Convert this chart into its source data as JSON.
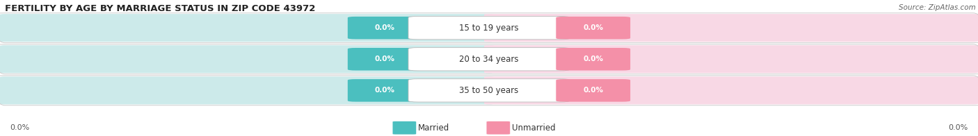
{
  "title": "FERTILITY BY AGE BY MARRIAGE STATUS IN ZIP CODE 43972",
  "source": "Source: ZipAtlas.com",
  "categories": [
    "15 to 19 years",
    "20 to 34 years",
    "35 to 50 years"
  ],
  "married_values": [
    0.0,
    0.0,
    0.0
  ],
  "unmarried_values": [
    0.0,
    0.0,
    0.0
  ],
  "married_color": "#4bbfbf",
  "unmarried_color": "#f490a8",
  "row_bg_left": "#d8f0f0",
  "row_bg_right": "#fad8e8",
  "row_bg_center": "#e8e8e8",
  "label_box_color": "#ffffff",
  "title_fontsize": 9.5,
  "source_fontsize": 7.5,
  "value_label": "0.0%",
  "axis_label_left": "0.0%",
  "axis_label_right": "0.0%",
  "legend_married": "Married",
  "legend_unmarried": "Unmarried",
  "legend_swatch_married": "#4bbfbf",
  "legend_swatch_unmarried": "#f490a8"
}
